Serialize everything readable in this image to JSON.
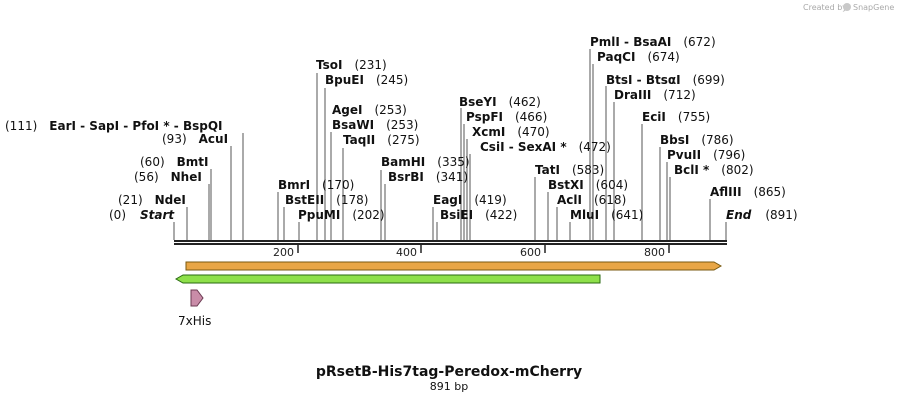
{
  "credit": {
    "prefix": "Created by",
    "brand": "SnapGene"
  },
  "map": {
    "title": "pRsetB-His7tag-Peredox-mCherry",
    "length_label": "891 bp",
    "length": 891,
    "ticks": [
      "200",
      "400",
      "600",
      "800"
    ],
    "ends": {
      "start": "Start",
      "start_pos": "(0)",
      "end": "End",
      "end_pos": "(891)"
    },
    "feature_label": "7xHis",
    "colors": {
      "backbone": "#222222",
      "orange_arrow": "#e8a646",
      "orange_outline": "#7a5a10",
      "green_arrow": "#8ee04a",
      "green_outline": "#2a6a12",
      "his_tag": "#c98ca8",
      "his_outline": "#6b3a52"
    }
  },
  "chart_data": {
    "type": "table",
    "title": "pRsetB-His7tag-Peredox-mCherry",
    "sequence_length_bp": 891,
    "axis_ticks_bp": [
      200,
      400,
      600,
      800
    ],
    "sites": [
      {
        "name": "NdeI",
        "pos": 21
      },
      {
        "name": "NheI",
        "pos": 56
      },
      {
        "name": "BmtI",
        "pos": 60
      },
      {
        "name": "AcuI",
        "pos": 93
      },
      {
        "name": "EarI - SapI - PfoI * - BspQI",
        "pos": 111
      },
      {
        "name": "BmrI",
        "pos": 170
      },
      {
        "name": "BstEII",
        "pos": 178
      },
      {
        "name": "PpuMI",
        "pos": 202
      },
      {
        "name": "TsoI",
        "pos": 231
      },
      {
        "name": "BpuEI",
        "pos": 245
      },
      {
        "name": "AgeI",
        "pos": 253
      },
      {
        "name": "BsaWI",
        "pos": 253
      },
      {
        "name": "TaqII",
        "pos": 275
      },
      {
        "name": "BamHI",
        "pos": 335
      },
      {
        "name": "BsrBI",
        "pos": 341
      },
      {
        "name": "EagI",
        "pos": 419
      },
      {
        "name": "BsiEI",
        "pos": 422
      },
      {
        "name": "BseYI",
        "pos": 462
      },
      {
        "name": "PspFI",
        "pos": 466
      },
      {
        "name": "XcmI",
        "pos": 470
      },
      {
        "name": "CsiI - SexAI *",
        "pos": 472
      },
      {
        "name": "TatI",
        "pos": 583
      },
      {
        "name": "BstXI",
        "pos": 604
      },
      {
        "name": "AclI",
        "pos": 618
      },
      {
        "name": "MluI",
        "pos": 641
      },
      {
        "name": "PmlI - BsaAI",
        "pos": 672
      },
      {
        "name": "PaqCI",
        "pos": 674
      },
      {
        "name": "BtsI - BtsαI",
        "pos": 699
      },
      {
        "name": "DraIII",
        "pos": 712
      },
      {
        "name": "EciI",
        "pos": 755
      },
      {
        "name": "BbsI",
        "pos": 786
      },
      {
        "name": "PvuII",
        "pos": 796
      },
      {
        "name": "BclI *",
        "pos": 802
      },
      {
        "name": "AflIII",
        "pos": 865
      }
    ]
  }
}
